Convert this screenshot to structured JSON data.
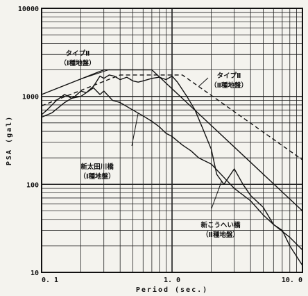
{
  "chart_data": {
    "type": "line",
    "title": "",
    "xlabel": "Period (sec.)",
    "ylabel": "PSA (gal)",
    "x_scale": "log",
    "y_scale": "log",
    "xlim": [
      0.1,
      10.0
    ],
    "ylim": [
      10,
      10000
    ],
    "grid": true,
    "x_ticks": [
      "0. 1",
      "1. 0",
      "10. 0"
    ],
    "y_ticks": [
      "10",
      "100",
      "1000",
      "10000"
    ],
    "series": [
      {
        "name": "タイプⅡ（Ⅰ種地盤）",
        "style": "solid",
        "x": [
          0.1,
          0.3,
          0.7,
          10.0
        ],
        "y": [
          1050,
          2000,
          2000,
          50
        ]
      },
      {
        "name": "タイプⅡ（Ⅱ種地盤）",
        "style": "dashed",
        "x": [
          0.1,
          0.4,
          1.2,
          10.0
        ],
        "y": [
          780,
          1750,
          1750,
          190
        ]
      },
      {
        "name": "新太田川橋（Ⅰ種地盤）",
        "style": "solid",
        "x": [
          0.1,
          0.11,
          0.13,
          0.15,
          0.17,
          0.2,
          0.22,
          0.25,
          0.28,
          0.3,
          0.35,
          0.4,
          0.5,
          0.6,
          0.7,
          0.8,
          0.9,
          1.0,
          1.2,
          1.4,
          1.6,
          2.0,
          2.5,
          3.0,
          4.0,
          5.0,
          6.0,
          8.0,
          10.0
        ],
        "y": [
          620,
          700,
          900,
          1050,
          950,
          1000,
          1100,
          1250,
          1050,
          1150,
          900,
          850,
          700,
          600,
          520,
          450,
          380,
          350,
          280,
          240,
          200,
          170,
          120,
          90,
          65,
          45,
          35,
          25,
          18
        ]
      },
      {
        "name": "新こうへい橋（Ⅱ種地盤）",
        "style": "solid",
        "x": [
          0.1,
          0.12,
          0.15,
          0.18,
          0.2,
          0.22,
          0.25,
          0.28,
          0.3,
          0.33,
          0.36,
          0.4,
          0.45,
          0.5,
          0.55,
          0.6,
          0.7,
          0.8,
          0.9,
          1.0,
          1.1,
          1.3,
          1.5,
          1.7,
          2.0,
          2.2,
          2.5,
          3.0,
          3.5,
          4.0,
          5.0,
          6.0,
          7.0,
          8.0,
          10.0
        ],
        "y": [
          580,
          650,
          850,
          1000,
          1150,
          1100,
          1300,
          1700,
          1600,
          1750,
          1700,
          1550,
          1650,
          1500,
          1450,
          1500,
          1600,
          1650,
          1550,
          1700,
          1450,
          1000,
          700,
          450,
          250,
          130,
          100,
          150,
          100,
          75,
          55,
          35,
          30,
          20,
          12
        ]
      }
    ],
    "annotations": [
      {
        "lines": [
          "タイプⅡ",
          "（Ⅰ種地盤）"
        ],
        "target_series": 0
      },
      {
        "lines": [
          "タイプⅡ",
          "（Ⅱ種地盤）"
        ],
        "target_series": 1
      },
      {
        "lines": [
          "新太田川橋",
          "（Ⅰ種地盤）"
        ],
        "target_series": 2
      },
      {
        "lines": [
          "新こうへい橋",
          "（Ⅱ種地盤）"
        ],
        "target_series": 3
      }
    ]
  }
}
